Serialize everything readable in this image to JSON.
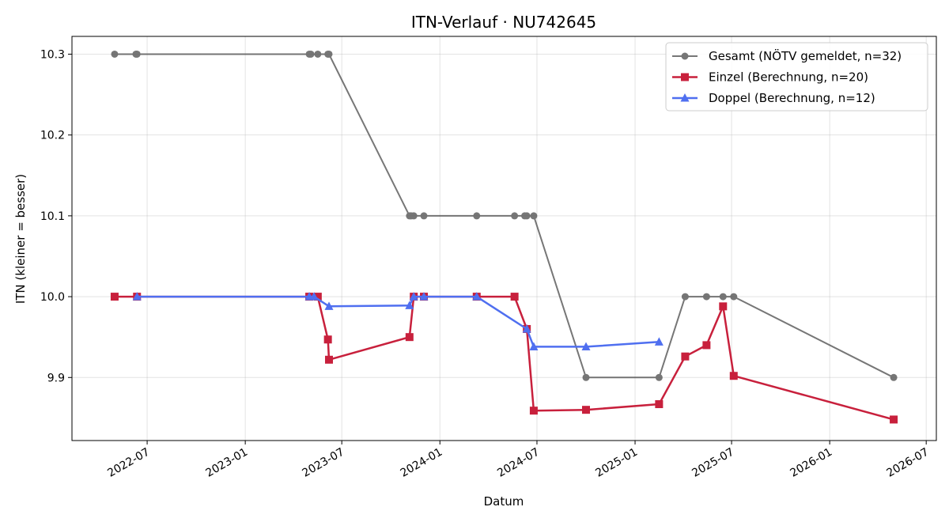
{
  "chart_data": {
    "type": "line",
    "title": "ITN-Verlauf · NU742645",
    "xlabel": "Datum",
    "ylabel": "ITN  (kleiner = besser)",
    "x_type": "date",
    "xlim": [
      "2022-02-10",
      "2026-07-20"
    ],
    "ylim": [
      9.822,
      10.322
    ],
    "x_ticks": [
      "2022-07-01",
      "2023-01-01",
      "2023-07-01",
      "2024-01-01",
      "2024-07-01",
      "2025-01-01",
      "2025-07-01",
      "2026-01-01",
      "2026-07-01"
    ],
    "x_tick_labels": [
      "2022-07",
      "2023-01",
      "2023-07",
      "2024-01",
      "2024-07",
      "2025-01",
      "2025-07",
      "2026-01",
      "2026-07"
    ],
    "y_ticks": [
      9.9,
      10.0,
      10.1,
      10.2,
      10.3
    ],
    "y_tick_labels": [
      "9.9",
      "10.0",
      "10.1",
      "10.2",
      "10.3"
    ],
    "grid": true,
    "legend_position": "top-right",
    "series": [
      {
        "name": "Gesamt (NÖTV gemeldet, n=32)",
        "color": "#555555",
        "marker": "circle",
        "points": [
          [
            "2022-05-01",
            10.3
          ],
          [
            "2022-06-10",
            10.3
          ],
          [
            "2022-06-12",
            10.3
          ],
          [
            "2023-05-01",
            10.3
          ],
          [
            "2023-05-04",
            10.3
          ],
          [
            "2023-05-17",
            10.3
          ],
          [
            "2023-06-05",
            10.3
          ],
          [
            "2023-06-07",
            10.3
          ],
          [
            "2023-11-05",
            10.1
          ],
          [
            "2023-11-08",
            10.1
          ],
          [
            "2023-11-13",
            10.1
          ],
          [
            "2023-12-02",
            10.1
          ],
          [
            "2024-03-10",
            10.1
          ],
          [
            "2024-05-20",
            10.1
          ],
          [
            "2024-06-08",
            10.1
          ],
          [
            "2024-06-12",
            10.1
          ],
          [
            "2024-06-25",
            10.1
          ],
          [
            "2024-10-01",
            9.9
          ],
          [
            "2025-02-15",
            9.9
          ],
          [
            "2025-04-05",
            10.0
          ],
          [
            "2025-05-15",
            10.0
          ],
          [
            "2025-06-15",
            10.0
          ],
          [
            "2025-07-05",
            10.0
          ],
          [
            "2026-05-01",
            9.9
          ]
        ]
      },
      {
        "name": "Einzel (Berechnung, n=20)",
        "color": "#c8203c",
        "marker": "square",
        "points": [
          [
            "2022-05-01",
            10.0
          ],
          [
            "2022-06-12",
            10.0
          ],
          [
            "2023-05-01",
            10.0
          ],
          [
            "2023-05-17",
            10.0
          ],
          [
            "2023-06-05",
            9.947
          ],
          [
            "2023-06-07",
            9.922
          ],
          [
            "2023-11-05",
            9.95
          ],
          [
            "2023-11-13",
            10.0
          ],
          [
            "2023-12-02",
            10.0
          ],
          [
            "2024-03-10",
            10.0
          ],
          [
            "2024-05-20",
            10.0
          ],
          [
            "2024-06-12",
            9.96
          ],
          [
            "2024-06-25",
            9.859
          ],
          [
            "2024-10-01",
            9.86
          ],
          [
            "2025-02-15",
            9.867
          ],
          [
            "2025-04-05",
            9.926
          ],
          [
            "2025-05-15",
            9.94
          ],
          [
            "2025-06-15",
            9.988
          ],
          [
            "2025-07-05",
            9.902
          ],
          [
            "2026-05-01",
            9.848
          ]
        ]
      },
      {
        "name": "Doppel (Berechnung, n=12)",
        "color": "#4f6ff0",
        "marker": "triangle",
        "points": [
          [
            "2022-06-12",
            10.0
          ],
          [
            "2023-05-01",
            10.0
          ],
          [
            "2023-05-10",
            10.0
          ],
          [
            "2023-06-07",
            9.988
          ],
          [
            "2023-11-05",
            9.989
          ],
          [
            "2023-11-13",
            10.0
          ],
          [
            "2023-12-02",
            10.0
          ],
          [
            "2024-03-10",
            10.0
          ],
          [
            "2024-06-12",
            9.96
          ],
          [
            "2024-06-25",
            9.938
          ],
          [
            "2024-10-01",
            9.938
          ],
          [
            "2025-02-15",
            9.944
          ]
        ]
      }
    ]
  }
}
